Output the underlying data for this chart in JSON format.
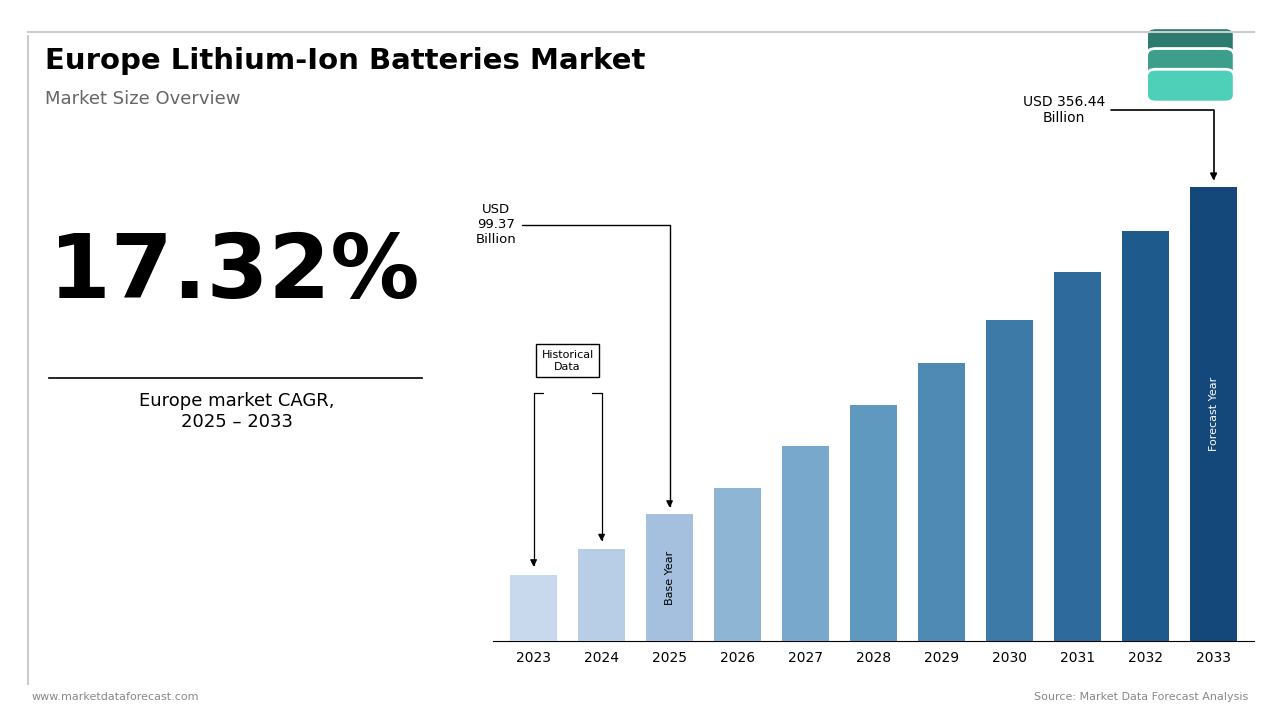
{
  "title": "Europe Lithium-Ion Batteries Market",
  "subtitle": "Market Size Overview",
  "cagr": "17.32%",
  "cagr_label": "Europe market CAGR,\n2025 – 2033",
  "usd_label_2025": "USD\n99.37\nBillion",
  "usd_label_2033": "USD 356.44\nBillion",
  "historical_label": "Historical\nData",
  "base_year_label": "Base Year",
  "forecast_year_label": "Forecast Year",
  "footer_left": "www.marketdataforecast.com",
  "footer_right": "Source: Market Data Forecast Analysis",
  "years": [
    2023,
    2024,
    2025,
    2026,
    2027,
    2028,
    2029,
    2030,
    2031,
    2032,
    2033
  ],
  "values": [
    52,
    72,
    99.37,
    120,
    153,
    185,
    218,
    252,
    290,
    322,
    356.44
  ],
  "bar_colors": [
    "#c8d9ed",
    "#b8cde6",
    "#a5c0de",
    "#8fb5d5",
    "#78a8cc",
    "#6099bf",
    "#4f8ab4",
    "#3e7aa8",
    "#2e6a9b",
    "#1f5a8d",
    "#14487a"
  ],
  "background_color": "#ffffff",
  "footer_color": "#888888",
  "border_color": "#cccccc"
}
